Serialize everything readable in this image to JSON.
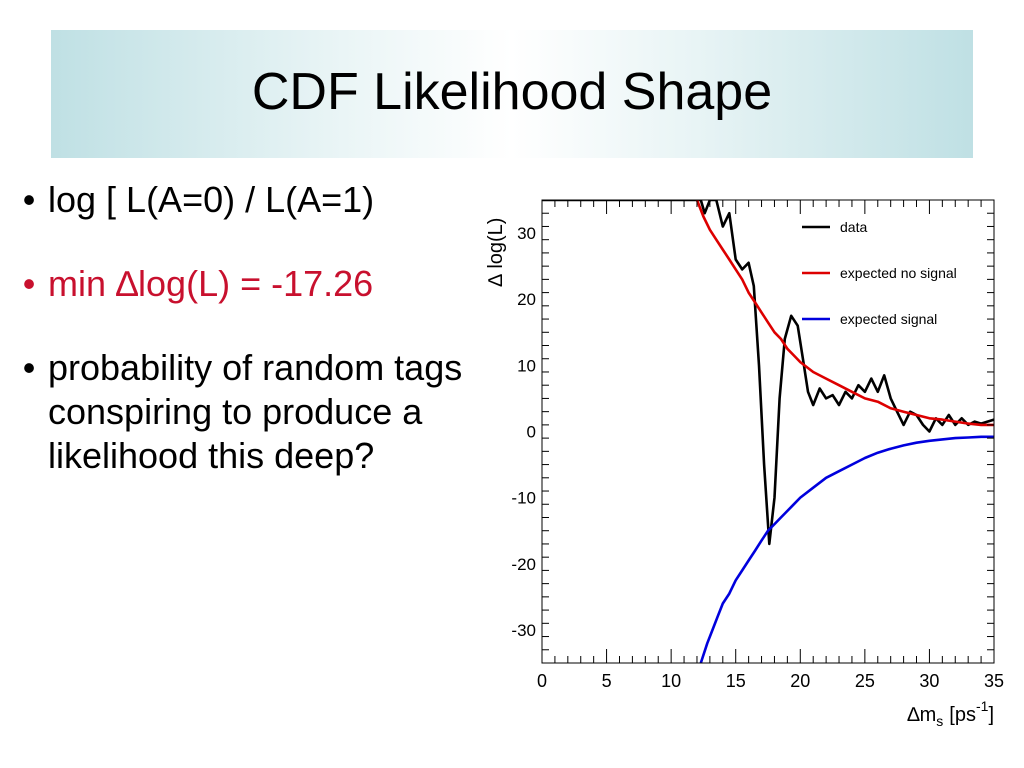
{
  "slide": {
    "title": "CDF Likelihood Shape",
    "bullet_glyph": "•",
    "bullets": [
      {
        "text": "log [ L(A=0) / L(A=1)",
        "color": "#000000"
      },
      {
        "text": "min ∆log(L) = -17.26",
        "color": "#c8102e"
      },
      {
        "text": "probability of random tags conspiring to produce a likelihood this deep?",
        "color": "#000000"
      }
    ]
  },
  "chart_data": {
    "type": "line",
    "title": "",
    "xlabel": "∆m",
    "xlabel_sub": "s",
    "xlabel_unit": "[ps",
    "xlabel_sup": "-1",
    "xlabel_close": "]",
    "ylabel": "∆ log(L)",
    "xlim": [
      0,
      35
    ],
    "ylim": [
      -35,
      35
    ],
    "x_ticks": [
      0,
      5,
      10,
      15,
      20,
      25,
      30,
      35
    ],
    "y_ticks": [
      -30,
      -20,
      -10,
      0,
      10,
      20,
      30
    ],
    "grid": false,
    "legend_position": "top-right",
    "series": [
      {
        "name": "data",
        "color": "#000000",
        "points": [
          [
            0,
            35
          ],
          [
            12.3,
            35
          ],
          [
            12.6,
            33
          ],
          [
            13,
            35
          ],
          [
            13.5,
            35
          ],
          [
            14,
            31
          ],
          [
            14.5,
            33
          ],
          [
            15,
            26
          ],
          [
            15.5,
            24.5
          ],
          [
            16,
            25.5
          ],
          [
            16.4,
            22
          ],
          [
            16.8,
            10
          ],
          [
            17.2,
            -5
          ],
          [
            17.6,
            -17
          ],
          [
            18,
            -10
          ],
          [
            18.4,
            5
          ],
          [
            18.8,
            14
          ],
          [
            19.3,
            17.5
          ],
          [
            19.8,
            16
          ],
          [
            20.2,
            11
          ],
          [
            20.6,
            6
          ],
          [
            21,
            4
          ],
          [
            21.5,
            6.5
          ],
          [
            22,
            5
          ],
          [
            22.5,
            5.5
          ],
          [
            23,
            4
          ],
          [
            23.5,
            6
          ],
          [
            24,
            5
          ],
          [
            24.5,
            7
          ],
          [
            25,
            6
          ],
          [
            25.5,
            8
          ],
          [
            26,
            6
          ],
          [
            26.5,
            8.5
          ],
          [
            27,
            5
          ],
          [
            27.5,
            3
          ],
          [
            28,
            1
          ],
          [
            28.5,
            3
          ],
          [
            29,
            2.5
          ],
          [
            29.5,
            1
          ],
          [
            30,
            0
          ],
          [
            30.5,
            2
          ],
          [
            31,
            1
          ],
          [
            31.5,
            2.5
          ],
          [
            32,
            1
          ],
          [
            32.5,
            2
          ],
          [
            33,
            1
          ],
          [
            33.5,
            1.5
          ],
          [
            34,
            1.2
          ],
          [
            34.5,
            1.5
          ],
          [
            35,
            1.8
          ]
        ]
      },
      {
        "name": "expected no signal",
        "color": "#dd0000",
        "points": [
          [
            12,
            35
          ],
          [
            12.5,
            32.5
          ],
          [
            13,
            30.5
          ],
          [
            13.5,
            29
          ],
          [
            14,
            27.5
          ],
          [
            14.5,
            26
          ],
          [
            15,
            24.5
          ],
          [
            15.5,
            23
          ],
          [
            16,
            21
          ],
          [
            16.5,
            19.5
          ],
          [
            17,
            18
          ],
          [
            17.5,
            16.5
          ],
          [
            18,
            15
          ],
          [
            18.5,
            14
          ],
          [
            19,
            12.5
          ],
          [
            19.5,
            11.5
          ],
          [
            20,
            10.5
          ],
          [
            21,
            9
          ],
          [
            22,
            8
          ],
          [
            23,
            7
          ],
          [
            24,
            6
          ],
          [
            25,
            5
          ],
          [
            26,
            4.5
          ],
          [
            27,
            3.5
          ],
          [
            28,
            3
          ],
          [
            29,
            2.5
          ],
          [
            30,
            2
          ],
          [
            31,
            1.8
          ],
          [
            32,
            1.5
          ],
          [
            33,
            1.2
          ],
          [
            34,
            1
          ],
          [
            35,
            1
          ]
        ]
      },
      {
        "name": "expected signal",
        "color": "#0000dd",
        "points": [
          [
            12.3,
            -35
          ],
          [
            12.8,
            -32
          ],
          [
            13.2,
            -30
          ],
          [
            13.6,
            -28
          ],
          [
            14,
            -26
          ],
          [
            14.5,
            -24.5
          ],
          [
            15,
            -22.5
          ],
          [
            15.5,
            -21
          ],
          [
            16,
            -19.5
          ],
          [
            16.5,
            -18
          ],
          [
            17,
            -16.5
          ],
          [
            17.5,
            -15
          ],
          [
            18,
            -14
          ],
          [
            18.5,
            -13
          ],
          [
            19,
            -12
          ],
          [
            19.5,
            -11
          ],
          [
            20,
            -10
          ],
          [
            21,
            -8.5
          ],
          [
            22,
            -7
          ],
          [
            23,
            -6
          ],
          [
            24,
            -5
          ],
          [
            25,
            -4
          ],
          [
            26,
            -3.2
          ],
          [
            27,
            -2.6
          ],
          [
            28,
            -2.1
          ],
          [
            29,
            -1.7
          ],
          [
            30,
            -1.4
          ],
          [
            31,
            -1.2
          ],
          [
            32,
            -1
          ],
          [
            33,
            -0.9
          ],
          [
            34,
            -0.8
          ],
          [
            35,
            -0.8
          ]
        ]
      }
    ]
  }
}
